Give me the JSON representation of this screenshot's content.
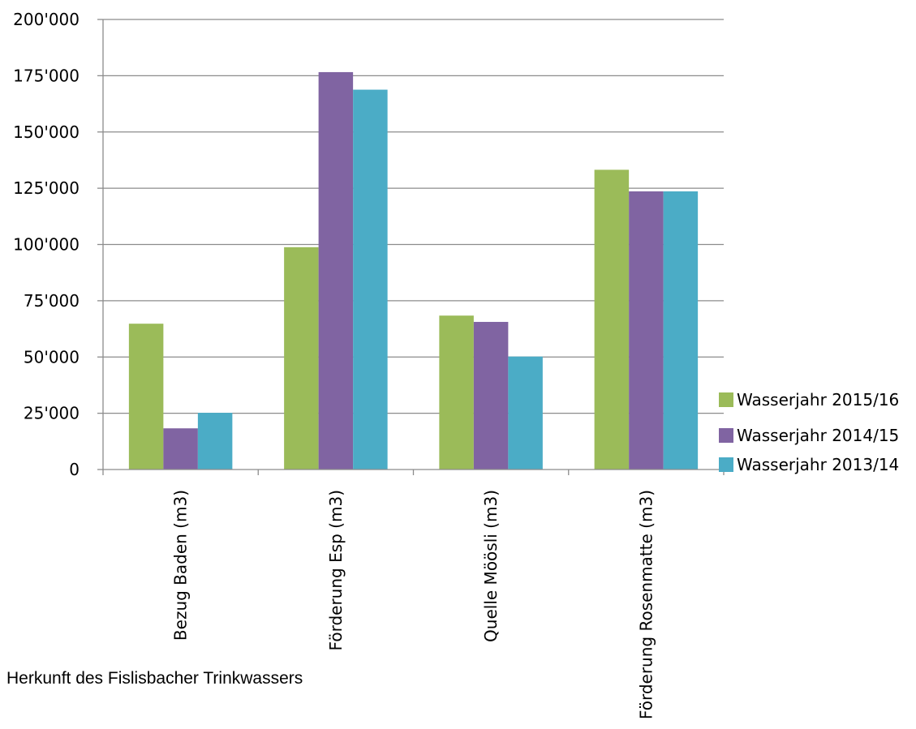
{
  "chart_data": {
    "type": "bar",
    "categories": [
      "Bezug Baden (m3)",
      "Förderung Esp (m3)",
      "Quelle Möösli (m3)",
      "Förderung Rosenmatte (m3)"
    ],
    "series": [
      {
        "name": "Wasserjahr 2015/16",
        "color": "#9BBB59",
        "values": [
          64800,
          98800,
          68400,
          133200
        ]
      },
      {
        "name": "Wasserjahr 2014/15",
        "color": "#8064A2",
        "values": [
          18300,
          176600,
          65600,
          123600
        ]
      },
      {
        "name": "Wasserjahr 2013/14",
        "color": "#4BACC6",
        "values": [
          25200,
          168800,
          50200,
          123600
        ]
      }
    ],
    "ylim": [
      0,
      200000
    ],
    "yticks": [
      0,
      25000,
      50000,
      75000,
      100000,
      125000,
      150000,
      175000,
      200000
    ],
    "ytick_labels": [
      "0",
      "25'000",
      "50'000",
      "75'000",
      "100'000",
      "125'000",
      "150'000",
      "175'000",
      "200'000"
    ],
    "grid": true,
    "legend_position": "right"
  },
  "caption": "Herkunft des Fislisbacher Trinkwassers"
}
